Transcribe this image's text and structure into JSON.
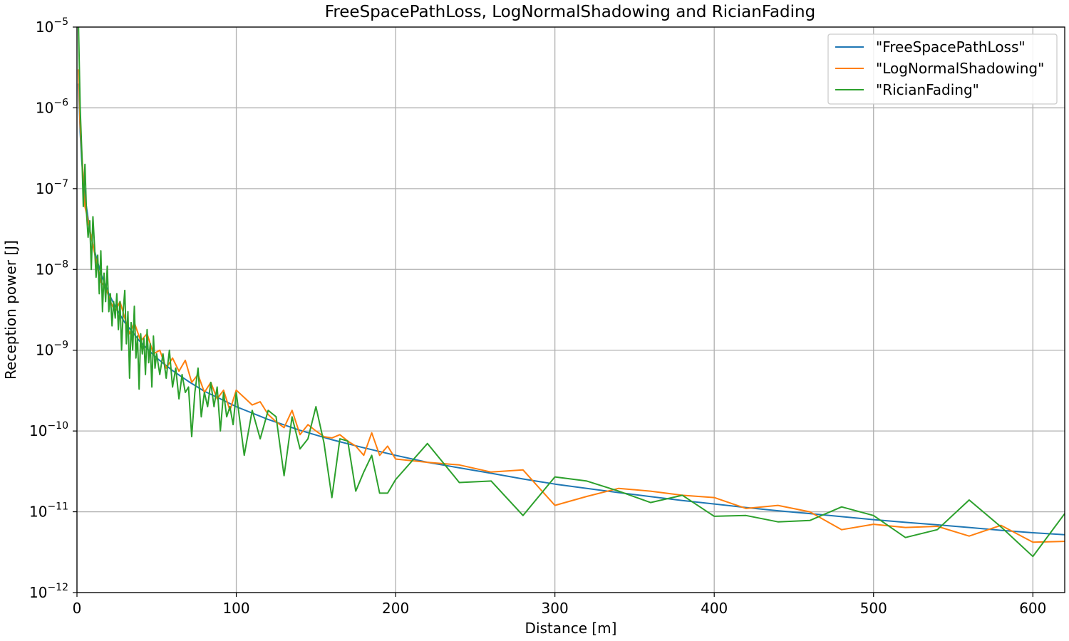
{
  "chart_data": {
    "type": "line",
    "title": "FreeSpacePathLoss, LogNormalShadowing and RicianFading",
    "xlabel": "Distance [m]",
    "ylabel": "Reception power [J]",
    "xlim": [
      0,
      620
    ],
    "ylim": [
      1e-12,
      1e-05
    ],
    "yscale": "log",
    "xticks": [
      0,
      100,
      200,
      300,
      400,
      500,
      600
    ],
    "xtick_labels": [
      "0",
      "100",
      "200",
      "300",
      "400",
      "500",
      "600"
    ],
    "yticks": [
      -12,
      -11,
      -10,
      -9,
      -8,
      -7,
      -6,
      -5
    ],
    "ytick_base": "10",
    "ytick_exponents": [
      "−12",
      "−11",
      "−10",
      "−9",
      "−8",
      "−7",
      "−6",
      "−5"
    ],
    "grid": true,
    "legend_position": "top-right",
    "series": [
      {
        "name": "\"FreeSpacePathLoss\"",
        "color": "#1f77b4",
        "x": [
          1,
          2,
          3,
          5,
          8,
          10,
          15,
          20,
          25,
          30,
          40,
          50,
          60,
          70,
          80,
          90,
          100,
          120,
          140,
          160,
          180,
          200,
          220,
          240,
          260,
          280,
          300,
          320,
          340,
          360,
          380,
          400,
          420,
          440,
          460,
          480,
          500,
          520,
          540,
          560,
          580,
          600,
          620
        ],
        "y": [
          2e-06,
          5e-07,
          2.2e-07,
          8e-08,
          3.1e-08,
          2e-08,
          8.9e-09,
          5e-09,
          3.2e-09,
          2.2e-09,
          1.25e-09,
          8e-10,
          5.6e-10,
          4.1e-10,
          3.1e-10,
          2.5e-10,
          2e-10,
          1.39e-10,
          1.02e-10,
          7.8e-11,
          6.2e-11,
          5e-11,
          4.1e-11,
          3.5e-11,
          3e-11,
          2.55e-11,
          2.2e-11,
          1.95e-11,
          1.73e-11,
          1.54e-11,
          1.38e-11,
          1.25e-11,
          1.13e-11,
          1.03e-11,
          9.5e-12,
          8.7e-12,
          8e-12,
          7.4e-12,
          6.9e-12,
          6.4e-12,
          5.9e-12,
          5.5e-12,
          5.2e-12
        ]
      },
      {
        "name": "\"LogNormalShadowing\"",
        "color": "#ff7f0e",
        "x": [
          1,
          2,
          3,
          5,
          7,
          9,
          12,
          15,
          18,
          21,
          24,
          27,
          30,
          33,
          36,
          40,
          44,
          48,
          52,
          56,
          60,
          64,
          68,
          72,
          76,
          80,
          84,
          88,
          92,
          96,
          100,
          105,
          110,
          115,
          120,
          125,
          130,
          135,
          140,
          145,
          150,
          155,
          160,
          165,
          170,
          175,
          180,
          185,
          190,
          195,
          200,
          220,
          240,
          260,
          280,
          300,
          320,
          340,
          360,
          380,
          400,
          420,
          440,
          460,
          480,
          500,
          520,
          540,
          560,
          580,
          600,
          620
        ],
        "y": [
          3e-06,
          6e-07,
          2.8e-07,
          6e-08,
          4e-08,
          2.5e-08,
          1.3e-08,
          7e-09,
          6e-09,
          4e-09,
          3e-09,
          4e-09,
          2.5e-09,
          1.6e-09,
          2.2e-09,
          1.3e-09,
          1.6e-09,
          9e-10,
          1e-09,
          6e-10,
          8e-10,
          5.5e-10,
          7.5e-10,
          4e-10,
          5e-10,
          3e-10,
          4e-10,
          2.5e-10,
          3.2e-10,
          1.8e-10,
          3.2e-10,
          2.6e-10,
          2.1e-10,
          2.3e-10,
          1.6e-10,
          1.3e-10,
          1.1e-10,
          1.8e-10,
          9e-11,
          1.2e-10,
          1e-10,
          8.5e-11,
          8.2e-11,
          9e-11,
          7.5e-11,
          6.5e-11,
          5e-11,
          9.5e-11,
          5e-11,
          6.5e-11,
          4.5e-11,
          4.1e-11,
          3.8e-11,
          3.1e-11,
          3.3e-11,
          1.2e-11,
          1.55e-11,
          1.95e-11,
          1.8e-11,
          1.6e-11,
          1.5e-11,
          1.1e-11,
          1.2e-11,
          1e-11,
          6e-12,
          7e-12,
          6.4e-12,
          6.6e-12,
          5e-12,
          6.8e-12,
          4.2e-12,
          4.3e-12
        ]
      },
      {
        "name": "\"RicianFading\"",
        "color": "#2ca02c",
        "x": [
          1,
          2,
          3,
          4,
          5,
          6,
          7,
          8,
          9,
          10,
          11,
          12,
          13,
          14,
          15,
          16,
          17,
          18,
          19,
          20,
          21,
          22,
          23,
          24,
          25,
          26,
          27,
          28,
          29,
          30,
          31,
          32,
          33,
          34,
          35,
          36,
          37,
          38,
          39,
          40,
          41,
          42,
          43,
          44,
          45,
          46,
          47,
          48,
          49,
          50,
          52,
          54,
          56,
          58,
          60,
          62,
          64,
          66,
          68,
          70,
          72,
          74,
          76,
          78,
          80,
          82,
          84,
          86,
          88,
          90,
          92,
          94,
          96,
          98,
          100,
          105,
          110,
          115,
          120,
          125,
          130,
          135,
          140,
          145,
          150,
          155,
          160,
          165,
          170,
          175,
          180,
          185,
          190,
          195,
          200,
          220,
          240,
          260,
          280,
          300,
          320,
          340,
          360,
          380,
          400,
          420,
          440,
          460,
          480,
          500,
          520,
          540,
          560,
          580,
          600,
          620
        ],
        "y": [
          1e-05,
          1e-06,
          3e-07,
          6e-08,
          2e-07,
          5e-08,
          2.5e-08,
          4e-08,
          1e-08,
          4.5e-08,
          2e-08,
          8e-09,
          1.5e-08,
          5e-09,
          1.7e-08,
          3e-09,
          9e-09,
          4e-09,
          1.1e-08,
          3e-09,
          5e-09,
          2e-09,
          4e-09,
          2.5e-09,
          5e-09,
          1.8e-09,
          4e-09,
          1e-09,
          3e-09,
          5.5e-09,
          1.2e-09,
          3e-09,
          4.5e-10,
          2.2e-09,
          1e-09,
          3.5e-09,
          8e-10,
          1.5e-09,
          3.3e-10,
          1.6e-09,
          9e-10,
          1.4e-09,
          5e-10,
          1.8e-09,
          7e-10,
          1.2e-09,
          3.5e-10,
          1.5e-09,
          6e-10,
          9e-10,
          5e-10,
          9e-10,
          4.5e-10,
          1e-09,
          3.5e-10,
          6e-10,
          2.5e-10,
          5e-10,
          3e-10,
          3.5e-10,
          8.5e-11,
          3e-10,
          6e-10,
          1.5e-10,
          3e-10,
          2e-10,
          4e-10,
          2e-10,
          3.5e-10,
          1e-10,
          3e-10,
          1.5e-10,
          2e-10,
          1.2e-10,
          3e-10,
          5e-11,
          1.8e-10,
          8e-11,
          1.8e-10,
          1.5e-10,
          2.8e-11,
          1.5e-10,
          6e-11,
          8e-11,
          2e-10,
          7.2e-11,
          1.5e-11,
          8e-11,
          7.5e-11,
          1.8e-11,
          3.1e-11,
          5e-11,
          1.7e-11,
          1.7e-11,
          2.5e-11,
          7e-11,
          2.3e-11,
          2.4e-11,
          9e-12,
          2.7e-11,
          2.4e-11,
          1.8e-11,
          1.3e-11,
          1.6e-11,
          8.8e-12,
          9e-12,
          7.5e-12,
          7.8e-12,
          1.15e-11,
          9e-12,
          4.8e-12,
          6e-12,
          1.4e-11,
          6.5e-12,
          2.8e-12,
          9.5e-12
        ]
      }
    ]
  }
}
